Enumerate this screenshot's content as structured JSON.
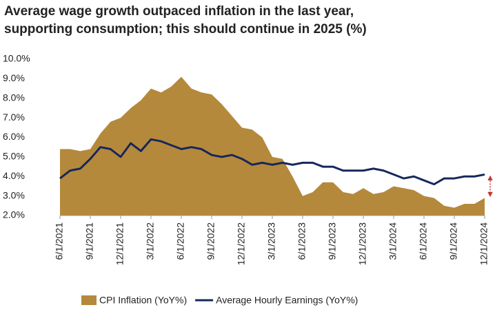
{
  "chart_data": {
    "type": "area-line",
    "title": "Average wage growth outpaced inflation in the last year, supporting consumption; this should continue in 2025 (%)",
    "categories": [
      "6/1/2021",
      null,
      null,
      "9/1/2021",
      null,
      null,
      "12/1/2021",
      null,
      null,
      "3/1/2022",
      null,
      null,
      "6/1/2022",
      null,
      null,
      "9/1/2022",
      null,
      null,
      "12/1/2022",
      null,
      null,
      "3/1/2023",
      null,
      null,
      "6/1/2023",
      null,
      null,
      "9/1/2023",
      null,
      null,
      "12/1/2023",
      null,
      null,
      "3/1/2024",
      null,
      null,
      "6/1/2024",
      null,
      null,
      "9/1/2024",
      null,
      null,
      "12/1/2024"
    ],
    "series": [
      {
        "name": "CPI Inflation (YoY%)",
        "kind": "area",
        "color": "#b5893b",
        "values": [
          5.4,
          5.4,
          5.3,
          5.4,
          6.2,
          6.8,
          7.0,
          7.5,
          7.9,
          8.5,
          8.3,
          8.6,
          9.1,
          8.5,
          8.3,
          8.2,
          7.7,
          7.1,
          6.5,
          6.4,
          6.0,
          5.0,
          4.9,
          4.0,
          3.0,
          3.2,
          3.7,
          3.7,
          3.2,
          3.1,
          3.4,
          3.1,
          3.2,
          3.5,
          3.4,
          3.3,
          3.0,
          2.9,
          2.5,
          2.4,
          2.6,
          2.6,
          2.9
        ]
      },
      {
        "name": "Average Hourly Earnings (YoY%)",
        "kind": "line",
        "color": "#16275c",
        "values": [
          3.9,
          4.3,
          4.4,
          4.9,
          5.5,
          5.4,
          5.0,
          5.7,
          5.3,
          5.9,
          5.8,
          5.6,
          5.4,
          5.5,
          5.4,
          5.1,
          5.0,
          5.1,
          4.9,
          4.6,
          4.7,
          4.6,
          4.7,
          4.6,
          4.7,
          4.7,
          4.5,
          4.5,
          4.3,
          4.3,
          4.3,
          4.4,
          4.3,
          4.1,
          3.9,
          4.0,
          3.8,
          3.6,
          3.9,
          3.9,
          4.0,
          4.0,
          4.1
        ]
      }
    ],
    "ylim": [
      2,
      10
    ],
    "yticks": [
      {
        "value": 2,
        "label": "2.0%"
      },
      {
        "value": 3,
        "label": "3.0%"
      },
      {
        "value": 4,
        "label": "4.0%"
      },
      {
        "value": 5,
        "label": "5.0%"
      },
      {
        "value": 6,
        "label": "6.0%"
      },
      {
        "value": 7,
        "label": "7.0%"
      },
      {
        "value": 8,
        "label": "8.0%"
      },
      {
        "value": 9,
        "label": "9.0%"
      },
      {
        "value": 10,
        "label": "10.0%"
      }
    ],
    "legend": "bottom"
  }
}
